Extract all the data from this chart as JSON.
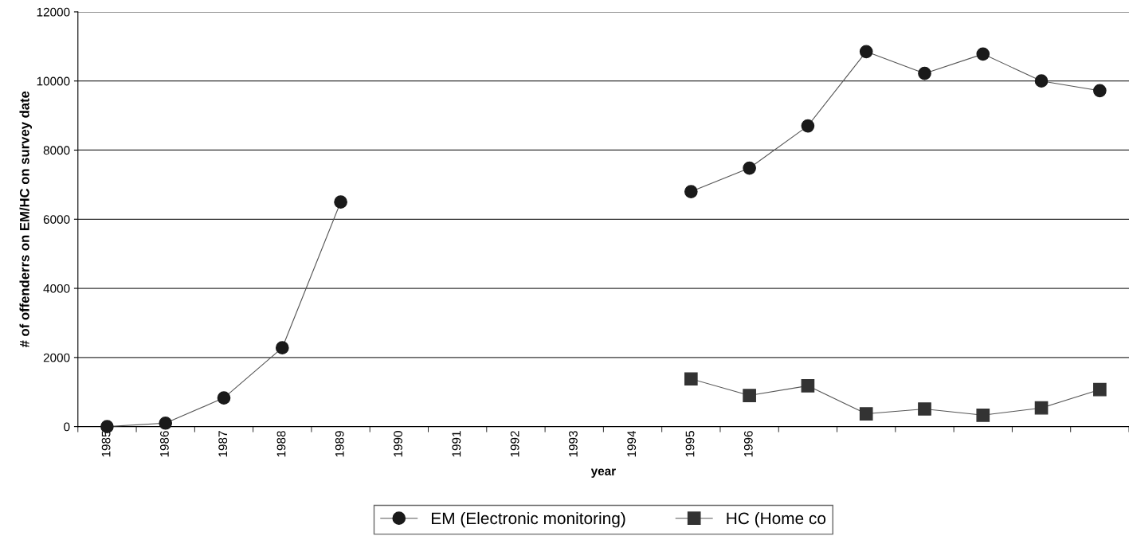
{
  "chart_data": {
    "type": "line",
    "xlabel": "year",
    "ylabel": "# of offenderrs on EM/HC on survey date",
    "categories": [
      "1985",
      "1986",
      "1987",
      "1988",
      "1989",
      "1990",
      "1991",
      "1992",
      "1993",
      "1994",
      "1995",
      "1996",
      null,
      null,
      null,
      null,
      null,
      null
    ],
    "series": [
      {
        "name": "EM (Electronic monitoring)",
        "color": "#1a1a1a",
        "marker": "circle",
        "values": [
          0,
          100,
          830,
          2280,
          6500,
          null,
          null,
          null,
          null,
          null,
          6800,
          7480,
          8700,
          10850,
          10220,
          10780,
          10000,
          9720
        ]
      },
      {
        "name": "HC (Home co",
        "color": "#333333",
        "marker": "square",
        "values": [
          null,
          null,
          null,
          null,
          null,
          null,
          null,
          null,
          null,
          null,
          1380,
          900,
          1180,
          370,
          510,
          330,
          540,
          1070
        ]
      }
    ],
    "ylim": [
      0,
      12000
    ],
    "yticks": [
      0,
      2000,
      4000,
      6000,
      8000,
      10000,
      12000
    ],
    "grid": "y",
    "legend": "bottom",
    "line_style": "solid"
  }
}
